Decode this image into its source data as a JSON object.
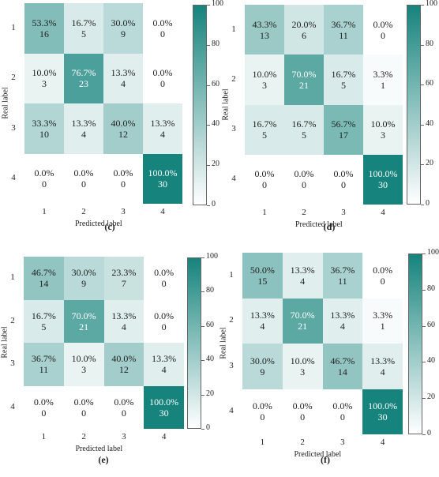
{
  "chart_data": [
    {
      "type": "heatmap",
      "caption": "(c)",
      "xlabel": "Predicted label",
      "ylabel": "Real label",
      "x_ticks": [
        "1",
        "2",
        "3",
        "4"
      ],
      "y_ticks": [
        "1",
        "2",
        "3",
        "4"
      ],
      "colorbar_ticks": [
        "0",
        "20",
        "40",
        "60",
        "80",
        "100"
      ],
      "colorbar_range": [
        0,
        100
      ],
      "percent_labels": [
        [
          "53.3%",
          "16.7%",
          "30.0%",
          "0.0%"
        ],
        [
          "10.0%",
          "76.7%",
          "13.3%",
          "0.0%"
        ],
        [
          "33.3%",
          "13.3%",
          "40.0%",
          "13.3%"
        ],
        [
          "0.0%",
          "0.0%",
          "0.0%",
          "100.0%"
        ]
      ],
      "count_labels": [
        [
          "16",
          "5",
          "9",
          "0"
        ],
        [
          "3",
          "23",
          "4",
          "0"
        ],
        [
          "10",
          "4",
          "12",
          "4"
        ],
        [
          "0",
          "0",
          "0",
          "30"
        ]
      ],
      "values": [
        [
          53.3,
          16.7,
          30.0,
          0.0
        ],
        [
          10.0,
          76.7,
          13.3,
          0.0
        ],
        [
          33.3,
          13.3,
          40.0,
          13.3
        ],
        [
          0.0,
          0.0,
          0.0,
          100.0
        ]
      ]
    },
    {
      "type": "heatmap",
      "caption": "(d)",
      "xlabel": "Predicted label",
      "ylabel": "Real label",
      "x_ticks": [
        "1",
        "2",
        "3",
        "4"
      ],
      "y_ticks": [
        "1",
        "2",
        "3",
        "4"
      ],
      "colorbar_ticks": [
        "0",
        "20",
        "40",
        "60",
        "80",
        "100"
      ],
      "colorbar_range": [
        0,
        100
      ],
      "percent_labels": [
        [
          "43.3%",
          "20.0%",
          "36.7%",
          "0.0%"
        ],
        [
          "10.0%",
          "70.0%",
          "16.7%",
          "3.3%"
        ],
        [
          "16.7%",
          "16.7%",
          "56.7%",
          "10.0%"
        ],
        [
          "0.0%",
          "0.0%",
          "0.0%",
          "100.0%"
        ]
      ],
      "count_labels": [
        [
          "13",
          "6",
          "11",
          "0"
        ],
        [
          "3",
          "21",
          "5",
          "1"
        ],
        [
          "5",
          "5",
          "17",
          "3"
        ],
        [
          "0",
          "0",
          "0",
          "30"
        ]
      ],
      "values": [
        [
          43.3,
          20.0,
          36.7,
          0.0
        ],
        [
          10.0,
          70.0,
          16.7,
          3.3
        ],
        [
          16.7,
          16.7,
          56.7,
          10.0
        ],
        [
          0.0,
          0.0,
          0.0,
          100.0
        ]
      ]
    },
    {
      "type": "heatmap",
      "caption": "(e)",
      "xlabel": "Predicted label",
      "ylabel": "Real label",
      "x_ticks": [
        "1",
        "2",
        "3",
        "4"
      ],
      "y_ticks": [
        "1",
        "2",
        "3",
        "4"
      ],
      "colorbar_ticks": [
        "0",
        "20",
        "40",
        "60",
        "80",
        "100"
      ],
      "colorbar_range": [
        0,
        100
      ],
      "percent_labels": [
        [
          "46.7%",
          "30.0%",
          "23.3%",
          "0.0%"
        ],
        [
          "16.7%",
          "70.0%",
          "13.3%",
          "0.0%"
        ],
        [
          "36.7%",
          "10.0%",
          "40.0%",
          "13.3%"
        ],
        [
          "0.0%",
          "0.0%",
          "0.0%",
          "100.0%"
        ]
      ],
      "count_labels": [
        [
          "14",
          "9",
          "7",
          "0"
        ],
        [
          "5",
          "21",
          "4",
          "0"
        ],
        [
          "11",
          "3",
          "12",
          "4"
        ],
        [
          "0",
          "0",
          "0",
          "30"
        ]
      ],
      "values": [
        [
          46.7,
          30.0,
          23.3,
          0.0
        ],
        [
          16.7,
          70.0,
          13.3,
          0.0
        ],
        [
          36.7,
          10.0,
          40.0,
          13.3
        ],
        [
          0.0,
          0.0,
          0.0,
          100.0
        ]
      ]
    },
    {
      "type": "heatmap",
      "caption": "(f)",
      "xlabel": "Predicted label",
      "ylabel": "Real label",
      "x_ticks": [
        "1",
        "2",
        "3",
        "4"
      ],
      "y_ticks": [
        "1",
        "2",
        "3",
        "4"
      ],
      "colorbar_ticks": [
        "0",
        "20",
        "40",
        "60",
        "80",
        "100"
      ],
      "colorbar_range": [
        0,
        100
      ],
      "percent_labels": [
        [
          "50.0%",
          "13.3%",
          "36.7%",
          "0.0%"
        ],
        [
          "13.3%",
          "70.0%",
          "13.3%",
          "3.3%"
        ],
        [
          "30.0%",
          "10.0%",
          "46.7%",
          "13.3%"
        ],
        [
          "0.0%",
          "0.0%",
          "0.0%",
          "100.0%"
        ]
      ],
      "count_labels": [
        [
          "15",
          "4",
          "11",
          "0"
        ],
        [
          "4",
          "21",
          "4",
          "1"
        ],
        [
          "9",
          "3",
          "14",
          "4"
        ],
        [
          "0",
          "0",
          "0",
          "30"
        ]
      ],
      "values": [
        [
          50.0,
          13.3,
          36.7,
          0.0
        ],
        [
          13.3,
          70.0,
          13.3,
          3.3
        ],
        [
          30.0,
          10.0,
          46.7,
          13.3
        ],
        [
          0.0,
          0.0,
          0.0,
          100.0
        ]
      ]
    }
  ],
  "colors": {
    "low": "#ffffff",
    "high": "#16837c"
  }
}
